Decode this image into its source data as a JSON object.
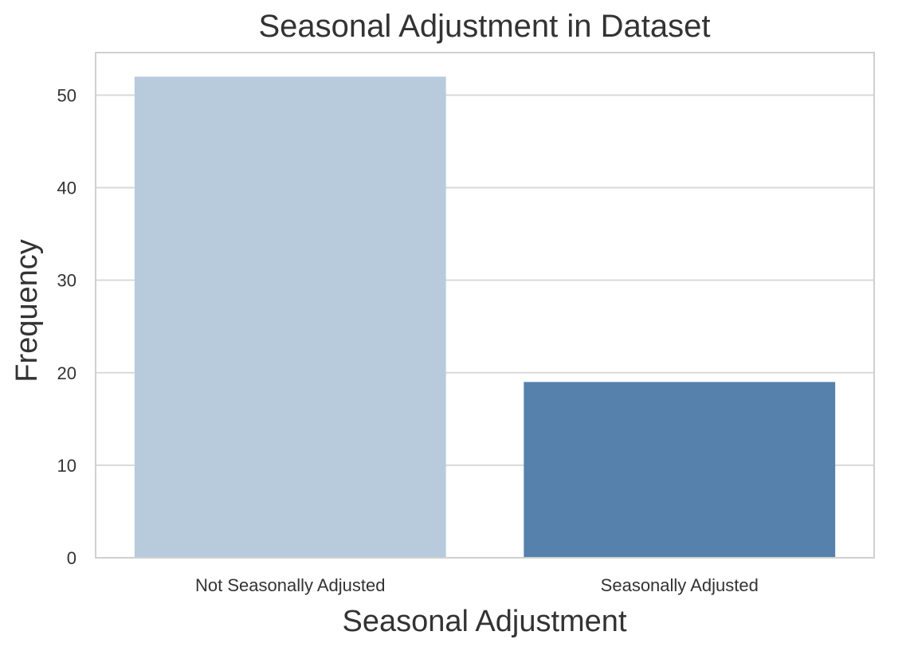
{
  "chart_data": {
    "type": "bar",
    "title": "Seasonal Adjustment in Dataset",
    "xlabel": "Seasonal Adjustment",
    "ylabel": "Frequency",
    "categories": [
      "Not Seasonally Adjusted",
      "Seasonally Adjusted"
    ],
    "values": [
      52,
      19
    ],
    "colors": [
      "#b7cbdc",
      "#5681ac"
    ],
    "ylim": [
      0,
      54.6
    ],
    "yticks": [
      0,
      10,
      20,
      30,
      40,
      50
    ],
    "grid": true,
    "legend": "none",
    "style": {
      "background": "#ffffff",
      "grid_color": "#d9d9d9",
      "frame_color": "#d0d0d0",
      "text_color": "#333333"
    }
  }
}
